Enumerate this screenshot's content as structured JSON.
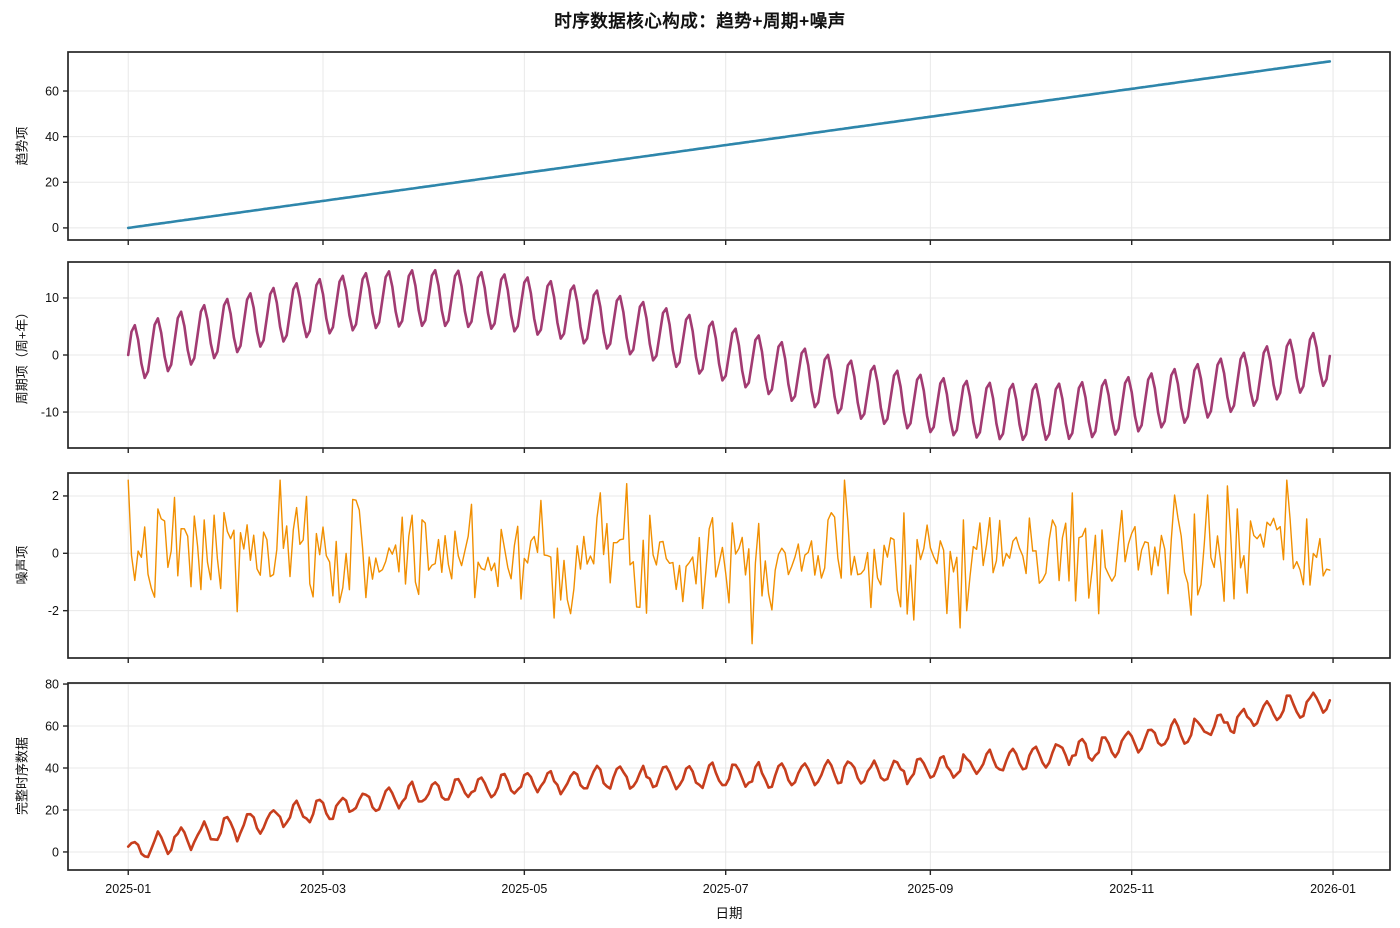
{
  "title": "时序数据核心构成：趋势+周期+噪声",
  "xlabel": "日期",
  "chart_data": {
    "type": "line",
    "layout": "4 vertically stacked subplots sharing one x axis, grid on, no legend",
    "background": "#ffffff",
    "n_days": 365,
    "x_start_date": "2025-01-01",
    "x_end_date": "2025-12-31",
    "xlim_days": [
      -18.25,
      382.25
    ],
    "x_ticks": [
      {
        "day": 0,
        "label": "2025-01"
      },
      {
        "day": 59,
        "label": "2025-03"
      },
      {
        "day": 120,
        "label": "2025-05"
      },
      {
        "day": 181,
        "label": "2025-07"
      },
      {
        "day": 243,
        "label": "2025-09"
      },
      {
        "day": 304,
        "label": "2025-11"
      },
      {
        "day": 365,
        "label": "2026-01"
      }
    ],
    "subplots": [
      {
        "name": "trend",
        "ylabel": "趋势项",
        "color": "#2E86AB",
        "line_width": 2.6,
        "ylim": [
          -5.3,
          77.1
        ],
        "yticks": [
          0,
          20,
          40,
          60
        ],
        "model": {
          "kind": "linear",
          "start_value": 0,
          "end_value": 73
        },
        "summary": "Straight line rising from 0 on 2025-01-01 to about 73 on 2025-12-31 (slope ~0.2/day)."
      },
      {
        "name": "seasonal",
        "ylabel": "周期项（周+年）",
        "color": "#A23B72",
        "line_width": 2.6,
        "ylim": [
          -16.3,
          16.3
        ],
        "yticks": [
          -10,
          0,
          10
        ],
        "model": {
          "kind": "seasonal",
          "yearly_amplitude": 10,
          "yearly_period_days": 365,
          "weekly_amplitude": 5,
          "weekly_period_days": 7,
          "start_value": 0
        },
        "summary": "Sum of a yearly sine (amplitude 10, max ~early April, min ~mid October) and a weekly sine (amplitude 5); envelope peaks near +15 in spring and -15 in autumn, starts and ends near 0."
      },
      {
        "name": "noise",
        "ylabel": "噪声项",
        "color": "#F18F01",
        "line_width": 1.4,
        "ylim": [
          -3.65,
          2.8
        ],
        "yticks": [
          -2,
          0,
          2
        ],
        "model": {
          "kind": "gaussian_noise",
          "mean": 0,
          "sigma": 1.0,
          "seed": 7,
          "observed_min": -3.4,
          "observed_max": 2.55
        },
        "summary": "Daily Gaussian noise, mean 0, sigma ~1; mostly within ±2 with extremes near -3.4 and +2.5."
      },
      {
        "name": "complete",
        "ylabel": "完整时序数据",
        "color": "#C73E1D",
        "line_width": 2.6,
        "ylim": [
          -8.6,
          80.5
        ],
        "yticks": [
          0,
          20,
          40,
          60,
          80
        ],
        "model": {
          "kind": "sum",
          "of": [
            "trend",
            "seasonal",
            "noise"
          ]
        },
        "summary": "Trend + seasonality + noise: starts near 0 (dipping to ~-4 in January), climbs with weekly wiggles to ~73-76 by end of December."
      }
    ],
    "axes_style": {
      "spine_color": "#262626",
      "spine_width": 1.7,
      "grid_color": "#e8e8e8",
      "grid_width": 1,
      "tick_color": "#262626",
      "tick_length": 5,
      "tick_label_color": "#111111",
      "tick_label_size": 12.5
    }
  }
}
